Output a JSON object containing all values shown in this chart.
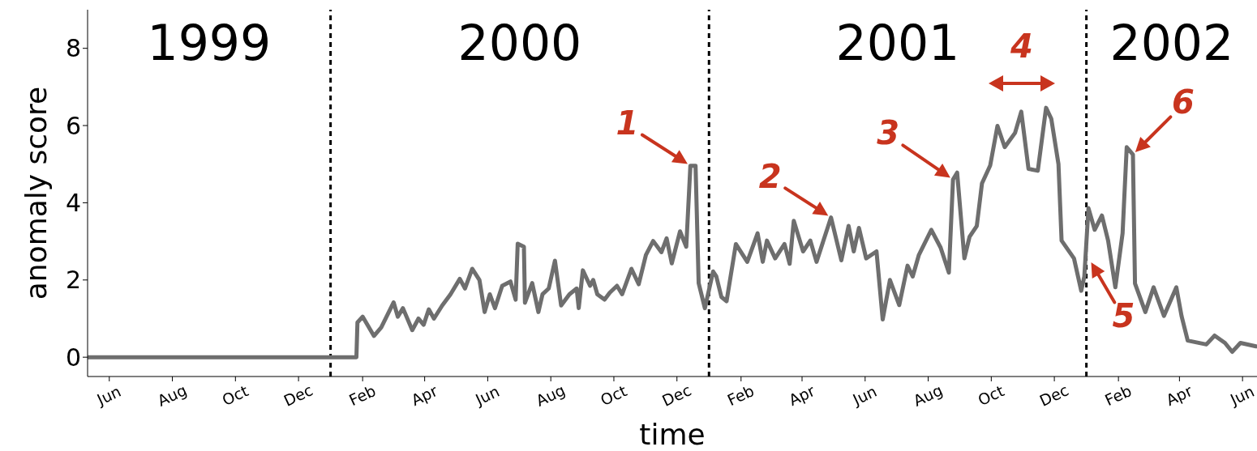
{
  "chart_data": {
    "type": "line",
    "xlabel": "time",
    "ylabel": "anomaly score",
    "xlim": [
      "1999-05-11",
      "2002-06-15"
    ],
    "ylim": [
      -0.5,
      9
    ],
    "yticks": [
      0,
      2,
      4,
      6,
      8
    ],
    "xticks": [
      {
        "value": "1999-06",
        "label": "Jun"
      },
      {
        "value": "1999-08",
        "label": "Aug"
      },
      {
        "value": "1999-10",
        "label": "Oct"
      },
      {
        "value": "1999-12",
        "label": "Dec"
      },
      {
        "value": "2000-02",
        "label": "Feb"
      },
      {
        "value": "2000-04",
        "label": "Apr"
      },
      {
        "value": "2000-06",
        "label": "Jun"
      },
      {
        "value": "2000-08",
        "label": "Aug"
      },
      {
        "value": "2000-10",
        "label": "Oct"
      },
      {
        "value": "2000-12",
        "label": "Dec"
      },
      {
        "value": "2001-02",
        "label": "Feb"
      },
      {
        "value": "2001-04",
        "label": "Apr"
      },
      {
        "value": "2001-06",
        "label": "Jun"
      },
      {
        "value": "2001-08",
        "label": "Aug"
      },
      {
        "value": "2001-10",
        "label": "Oct"
      },
      {
        "value": "2001-12",
        "label": "Dec"
      },
      {
        "value": "2002-02",
        "label": "Feb"
      },
      {
        "value": "2002-04",
        "label": "Apr"
      },
      {
        "value": "2002-06",
        "label": "Jun"
      }
    ],
    "grid": false,
    "legend": false,
    "marker": "none",
    "line_style": "solid",
    "x": [
      "1999-05-11",
      "2000-01-26",
      "2000-01-27",
      "2000-02-01",
      "2000-02-12",
      "2000-02-19",
      "2000-03-02",
      "2000-03-06",
      "2000-03-11",
      "2000-03-20",
      "2000-03-26",
      "2000-03-31",
      "2000-04-05",
      "2000-04-10",
      "2000-04-18",
      "2000-04-26",
      "2000-05-05",
      "2000-05-10",
      "2000-05-17",
      "2000-05-24",
      "2000-05-29",
      "2000-06-03",
      "2000-06-08",
      "2000-06-15",
      "2000-06-23",
      "2000-06-28",
      "2000-06-30",
      "2000-07-06",
      "2000-07-07",
      "2000-07-14",
      "2000-07-20",
      "2000-07-24",
      "2000-07-30",
      "2000-08-05",
      "2000-08-11",
      "2000-08-19",
      "2000-08-26",
      "2000-08-28",
      "2000-09-01",
      "2000-09-08",
      "2000-09-11",
      "2000-09-15",
      "2000-09-22",
      "2000-09-27",
      "2000-10-04",
      "2000-10-09",
      "2000-10-18",
      "2000-10-25",
      "2000-11-01",
      "2000-11-08",
      "2000-11-16",
      "2000-11-21",
      "2000-11-26",
      "2000-12-04",
      "2000-12-10",
      "2000-12-14",
      "2000-12-19",
      "2000-12-22",
      "2000-12-28",
      "2001-01-05",
      "2001-01-08",
      "2001-01-13",
      "2001-01-18",
      "2001-01-27",
      "2001-02-07",
      "2001-02-17",
      "2001-02-22",
      "2001-02-26",
      "2001-03-06",
      "2001-03-15",
      "2001-03-20",
      "2001-03-24",
      "2001-04-02",
      "2001-04-09",
      "2001-04-15",
      "2001-04-29",
      "2001-05-09",
      "2001-05-16",
      "2001-05-21",
      "2001-05-26",
      "2001-06-02",
      "2001-06-12",
      "2001-06-18",
      "2001-06-25",
      "2001-07-04",
      "2001-07-12",
      "2001-07-17",
      "2001-07-23",
      "2001-08-04",
      "2001-08-13",
      "2001-08-21",
      "2001-08-25",
      "2001-08-29",
      "2001-09-05",
      "2001-09-10",
      "2001-09-17",
      "2001-09-22",
      "2001-09-30",
      "2001-10-07",
      "2001-10-14",
      "2001-10-24",
      "2001-10-30",
      "2001-11-06",
      "2001-11-15",
      "2001-11-23",
      "2001-11-28",
      "2001-12-05",
      "2001-12-08",
      "2001-12-20",
      "2001-12-27",
      "2001-12-30",
      "2002-01-03",
      "2002-01-09",
      "2002-01-16",
      "2002-01-22",
      "2002-01-29",
      "2002-02-05",
      "2002-02-09",
      "2002-02-15",
      "2002-02-17",
      "2002-02-27",
      "2002-03-07",
      "2002-03-17",
      "2002-03-29",
      "2002-04-03",
      "2002-04-09",
      "2002-04-27",
      "2002-05-05",
      "2002-05-15",
      "2002-05-22",
      "2002-05-30",
      "2002-06-14"
    ],
    "series": [
      {
        "color": "#6e6e6e",
        "values": [
          0,
          0,
          0.9,
          1.05,
          0.55,
          0.77,
          1.42,
          1.05,
          1.27,
          0.7,
          1.0,
          0.84,
          1.24,
          1.0,
          1.34,
          1.63,
          2.03,
          1.78,
          2.29,
          2.0,
          1.17,
          1.63,
          1.27,
          1.85,
          1.96,
          1.49,
          2.94,
          2.86,
          1.41,
          1.92,
          1.17,
          1.63,
          1.78,
          2.5,
          1.34,
          1.63,
          1.78,
          1.27,
          2.25,
          1.85,
          2.0,
          1.63,
          1.49,
          1.67,
          1.85,
          1.63,
          2.29,
          1.89,
          2.65,
          3.01,
          2.72,
          3.08,
          2.43,
          3.26,
          2.86,
          4.96,
          4.96,
          1.92,
          1.27,
          2.22,
          2.1,
          1.56,
          1.45,
          2.93,
          2.47,
          3.21,
          2.47,
          3.02,
          2.56,
          2.93,
          2.42,
          3.53,
          2.74,
          3.02,
          2.47,
          3.62,
          2.51,
          3.4,
          2.74,
          3.35,
          2.56,
          2.74,
          0.98,
          2.0,
          1.35,
          2.37,
          2.09,
          2.65,
          3.3,
          2.84,
          2.19,
          4.6,
          4.78,
          2.56,
          3.12,
          3.4,
          4.5,
          4.97,
          5.99,
          5.44,
          5.81,
          6.36,
          4.88,
          4.83,
          6.46,
          6.18,
          5.0,
          3.02,
          2.56,
          1.72,
          2.09,
          3.86,
          3.3,
          3.67,
          3.02,
          1.81,
          3.21,
          5.44,
          5.25,
          1.91,
          1.17,
          1.81,
          1.07,
          1.81,
          1.07,
          0.43,
          0.33,
          0.56,
          0.37,
          0.14,
          0.37,
          0.28
        ]
      }
    ],
    "ref_lines": [
      {
        "axis": "x",
        "value": "2000-01-01",
        "color": "#000000",
        "line_style": "dashed"
      },
      {
        "axis": "x",
        "value": "2001-01-01",
        "color": "#000000",
        "line_style": "dashed"
      },
      {
        "axis": "x",
        "value": "2002-01-01",
        "color": "#000000",
        "line_style": "dashed"
      }
    ],
    "annotations": [
      "1999",
      "2000",
      "2001",
      "2002",
      "4",
      {
        "text": "1",
        "x": "2000-12-14",
        "y": 4.96
      },
      {
        "text": "2",
        "x": "2001-04-29",
        "y": 3.62
      },
      {
        "text": "3",
        "x": "2001-08-25",
        "y": 4.6
      },
      {
        "text": "5",
        "x": "2002-01-04",
        "y": 2.53
      },
      {
        "text": "6",
        "x": "2002-02-15",
        "y": 5.25
      }
    ]
  }
}
